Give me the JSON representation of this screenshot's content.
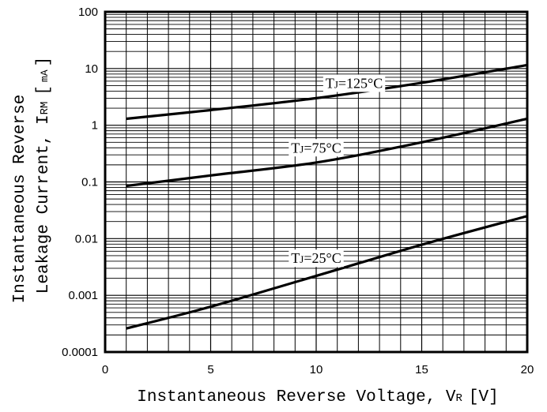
{
  "chart_data": {
    "type": "line",
    "title": "",
    "xlabel": "Instantaneous Reverse Voltage, VR [V]",
    "xlabel_parts": {
      "main": "Instantaneous Reverse Voltage, V",
      "sub": "R",
      "unit": "[V]"
    },
    "ylabel_line1": "Instantaneous Reverse",
    "ylabel_line2": "Leakage Current, IRM [mA]",
    "ylabel_parts": {
      "main": "Leakage Current, I",
      "sub": "RM",
      "unit_open": "[",
      "unit": "mA",
      "unit_close": "]"
    },
    "xlim": [
      0,
      20
    ],
    "ylim": [
      0.0001,
      100
    ],
    "y_scale": "log",
    "grid": true,
    "x_ticks": [
      {
        "value": 0,
        "label": "0"
      },
      {
        "value": 5,
        "label": "5"
      },
      {
        "value": 10,
        "label": "10"
      },
      {
        "value": 15,
        "label": "15"
      },
      {
        "value": 20,
        "label": "20"
      }
    ],
    "y_ticks": [
      {
        "value": 0.0001,
        "label": "0.0001"
      },
      {
        "value": 0.001,
        "label": "0.001"
      },
      {
        "value": 0.01,
        "label": "0.01"
      },
      {
        "value": 0.1,
        "label": "0.1"
      },
      {
        "value": 1,
        "label": "1"
      },
      {
        "value": 10,
        "label": "10"
      },
      {
        "value": 100,
        "label": "100"
      }
    ],
    "series": [
      {
        "name": "TJ=125°C",
        "label_main": "T",
        "label_sub": "J",
        "label_rest": "=125°C",
        "label_x": 11.8,
        "label_y": 5.5,
        "x": [
          1,
          5,
          10,
          15,
          20
        ],
        "y": [
          1.3,
          1.85,
          3.0,
          5.6,
          11.5
        ]
      },
      {
        "name": "TJ=75°C",
        "label_main": "T",
        "label_sub": "J",
        "label_rest": "=75°C",
        "label_x": 10.0,
        "label_y": 0.4,
        "x": [
          1,
          5,
          10,
          15,
          20
        ],
        "y": [
          0.085,
          0.13,
          0.22,
          0.5,
          1.3
        ]
      },
      {
        "name": "TJ=25°C",
        "label_main": "T",
        "label_sub": "J",
        "label_rest": "=25°C",
        "label_x": 10.0,
        "label_y": 0.0045,
        "x": [
          1,
          5,
          10,
          15,
          20
        ],
        "y": [
          0.00026,
          0.00063,
          0.0022,
          0.0078,
          0.025
        ]
      }
    ]
  }
}
